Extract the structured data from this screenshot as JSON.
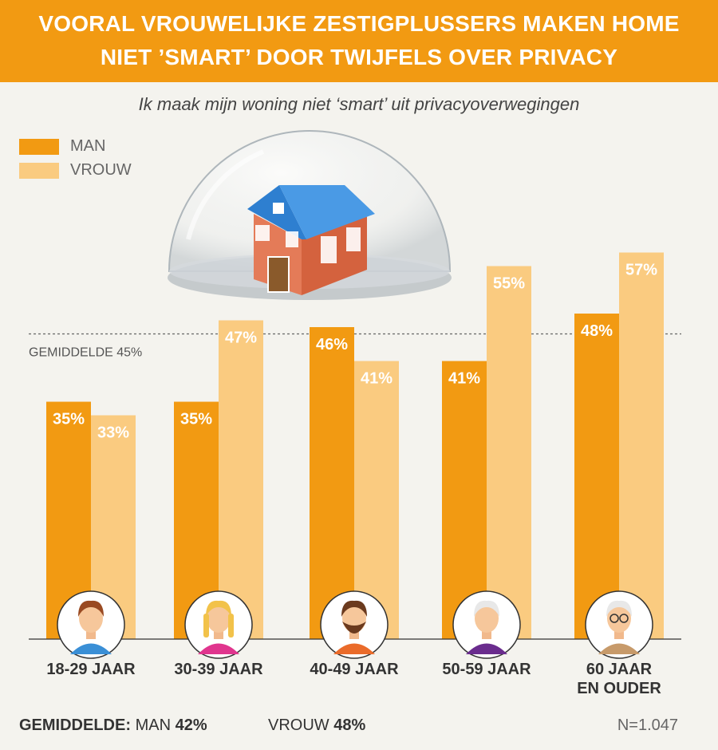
{
  "header": {
    "title_line1": "VOORAL VROUWELIJKE ZESTIGPLUSSERS MAKEN HOME",
    "title_line2": "NIET ’SMART’ DOOR TWIJFELS OVER PRIVACY"
  },
  "subtitle": "Ik maak mijn woning niet ‘smart’ uit privacyoverwegingen",
  "legend": [
    {
      "label": "MAN",
      "color": "#f29a12"
    },
    {
      "label": "VROUW",
      "color": "#facb80"
    }
  ],
  "chart_data": {
    "type": "bar",
    "categories": [
      "18-29 JAAR",
      "30-39 JAAR",
      "40-49 JAAR",
      "50-59 JAAR",
      "60 JAAR EN OUDER"
    ],
    "series": [
      {
        "name": "MAN",
        "values": [
          35,
          35,
          46,
          41,
          48
        ],
        "labels": [
          "35%",
          "35%",
          "46%",
          "41%",
          "48%"
        ],
        "color": "#f29a12"
      },
      {
        "name": "VROUW",
        "values": [
          33,
          47,
          41,
          55,
          57
        ],
        "labels": [
          "33%",
          "47%",
          "41%",
          "55%",
          "57%"
        ],
        "color": "#facb80"
      }
    ],
    "reference_line": {
      "value": 45,
      "label": "GEMIDDELDE 45%"
    },
    "category_labels": [
      [
        "18-29 JAAR"
      ],
      [
        "30-39 JAAR"
      ],
      [
        "40-49 JAAR"
      ],
      [
        "50-59 JAAR"
      ],
      [
        "60 JAAR",
        "EN OUDER"
      ]
    ],
    "avatars": [
      "young-man-avatar-icon",
      "young-woman-avatar-icon",
      "bearded-man-avatar-icon",
      "older-woman-avatar-icon",
      "elderly-man-avatar-icon"
    ],
    "illustration": "house-under-glass-dome-icon"
  },
  "footer": {
    "label": "GEMIDDELDE:",
    "man_label": "MAN",
    "man_value": "42%",
    "vrouw_label": "VROUW",
    "vrouw_value": "48%",
    "n": "N=1.047"
  }
}
